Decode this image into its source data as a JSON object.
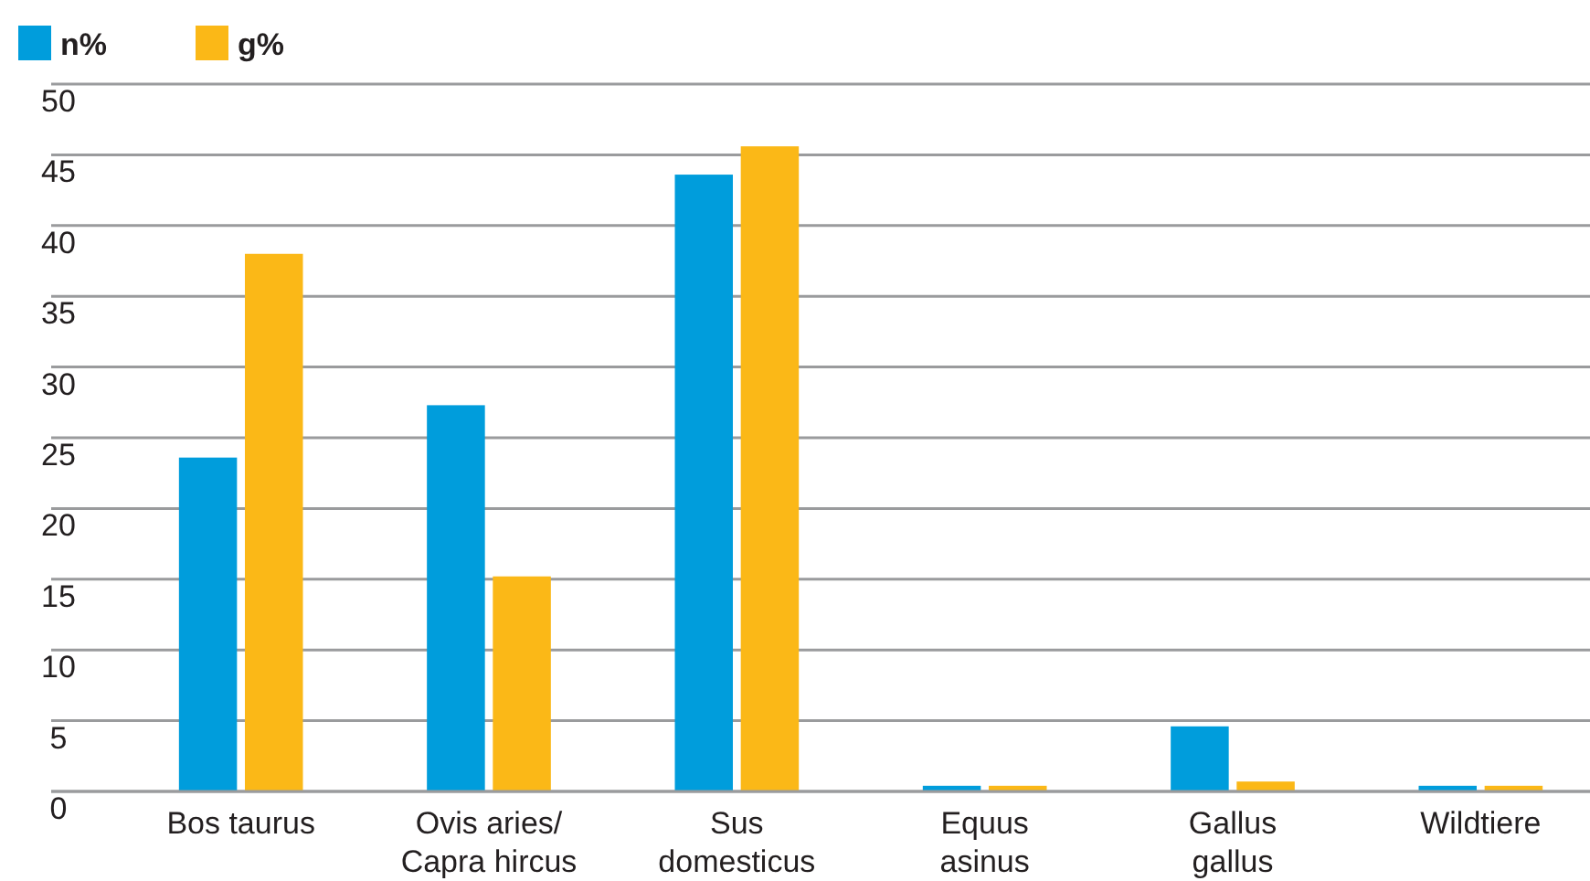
{
  "chart_data": {
    "type": "bar",
    "categories": [
      "Bos taurus",
      "Ovis aries/\nCapra hircus",
      "Sus\ndomesticus",
      "Equus\nasinus",
      "Gallus\ngallus",
      "Wildtiere"
    ],
    "series": [
      {
        "name": "n%",
        "color": "#009ddc",
        "values": [
          23.6,
          27.3,
          43.6,
          0.4,
          4.6,
          0.4
        ]
      },
      {
        "name": "g%",
        "color": "#fbb817",
        "values": [
          38.0,
          15.2,
          45.6,
          0.4,
          0.7,
          0.4
        ]
      }
    ],
    "ylim": [
      0,
      50
    ],
    "yticks": [
      0,
      5,
      10,
      15,
      20,
      25,
      30,
      35,
      40,
      45,
      50
    ],
    "grid": "y",
    "legend": "top left"
  }
}
